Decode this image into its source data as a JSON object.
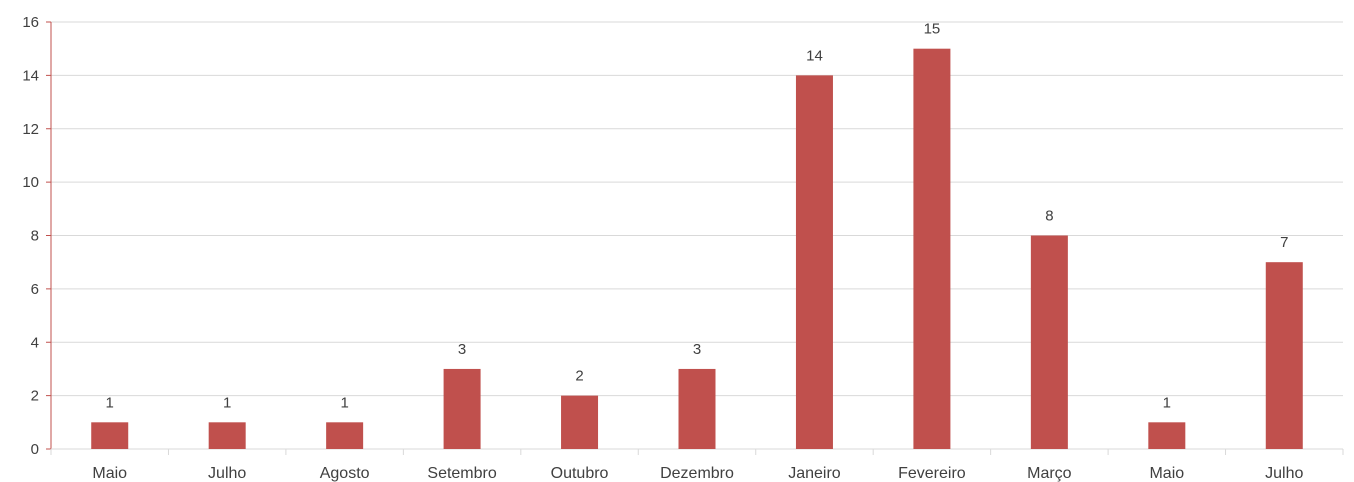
{
  "chart_data": {
    "type": "bar",
    "title": "",
    "xlabel": "",
    "ylabel": "",
    "categories": [
      "Maio",
      "Julho",
      "Agosto",
      "Setembro",
      "Outubro",
      "Dezembro",
      "Janeiro",
      "Fevereiro",
      "Março",
      "Maio",
      "Julho"
    ],
    "values": [
      1,
      1,
      1,
      3,
      2,
      3,
      14,
      15,
      8,
      1,
      7
    ],
    "ylim": [
      0,
      16
    ],
    "yticks": [
      0,
      2,
      4,
      6,
      8,
      10,
      12,
      14,
      16
    ],
    "grid": true,
    "legend": "none",
    "data_labels": true,
    "colors": {
      "bar": "#c0504d",
      "axis": "#c0504d",
      "grid": "#d9d9d9",
      "text": "#404040"
    }
  }
}
